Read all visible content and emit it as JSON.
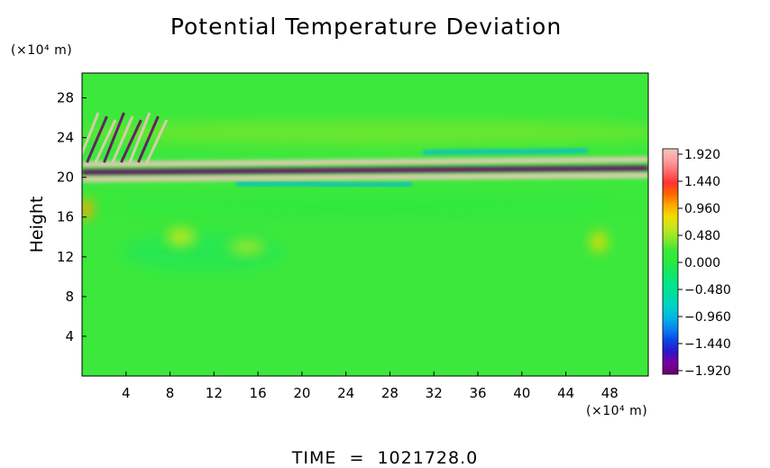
{
  "chart_data": {
    "type": "heatmap",
    "title": "Potential Temperature Deviation",
    "ylabel": "Height",
    "xlabel": "",
    "x_unit": "(×10⁴ m)",
    "y_unit": "(×10⁴ m)",
    "x_ticks": [
      4,
      8,
      12,
      16,
      20,
      24,
      28,
      32,
      36,
      40,
      44,
      48
    ],
    "y_ticks": [
      4,
      8,
      12,
      16,
      20,
      24,
      28
    ],
    "xlim": [
      0,
      51.5
    ],
    "ylim": [
      0,
      30.5
    ],
    "grid": false,
    "colorbar": {
      "labels": [
        "1.920",
        "1.440",
        "0.960",
        "0.480",
        "0.000",
        "−0.480",
        "−0.960",
        "−1.440",
        "−1.920"
      ],
      "min": -1.92,
      "max": 1.92,
      "colors": [
        "#6a006a",
        "#7a00a0",
        "#2d14c8",
        "#0a46e6",
        "#0a82f0",
        "#00b4e6",
        "#00d2c8",
        "#00dca0",
        "#00e68c",
        "#14e664",
        "#28ea3c",
        "#3ce83c",
        "#8ce628",
        "#c8e61e",
        "#f0dc00",
        "#ffa800",
        "#ff6400",
        "#ff3232",
        "#ff6e6e",
        "#ffa0a0",
        "#f0c8bc"
      ]
    },
    "features": [
      {
        "kind": "band",
        "value": 1.92,
        "x_range": [
          0,
          51.5
        ],
        "y_center": [
          21.3,
          21.8
        ]
      },
      {
        "kind": "band",
        "value": -1.92,
        "x_range": [
          0,
          51.5
        ],
        "y_center": [
          20.5,
          20.9
        ]
      },
      {
        "kind": "band",
        "value": 1.92,
        "x_range": [
          0,
          51.5
        ],
        "y_center": [
          19.8,
          20.2
        ]
      },
      {
        "kind": "band",
        "value": -1.0,
        "x_range": [
          14,
          30
        ],
        "y_center": [
          19.3,
          19.3
        ]
      },
      {
        "kind": "band",
        "value": -1.0,
        "x_range": [
          31,
          46
        ],
        "y_center": [
          22.5,
          22.7
        ]
      },
      {
        "kind": "wave_packet",
        "value": 1.9,
        "x_range": [
          0,
          7
        ],
        "y_range": [
          21.5,
          26.5
        ]
      },
      {
        "kind": "blob",
        "value": 0.9,
        "x": 0.3,
        "y": 16.8
      },
      {
        "kind": "blob",
        "value": 0.7,
        "x": 47,
        "y": 13.5
      }
    ]
  },
  "footer": {
    "time_label": "TIME  =  1021728.0"
  }
}
